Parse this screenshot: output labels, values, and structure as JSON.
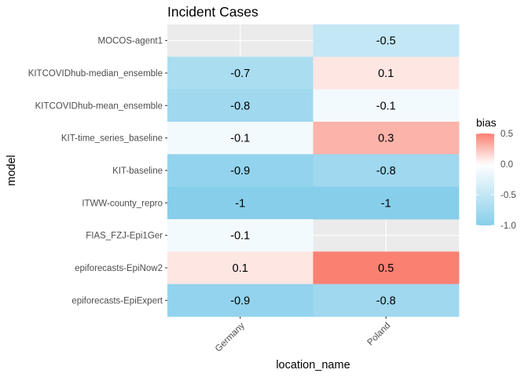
{
  "chart_data": {
    "type": "heatmap",
    "title": "Incident Cases",
    "xlabel": "location_name",
    "ylabel": "model",
    "x_categories": [
      "Germany",
      "Poland"
    ],
    "y_categories": [
      "MOCOS-agent1",
      "KITCOVIDhub-median_ensemble",
      "KITCOVIDhub-mean_ensemble",
      "KIT-time_series_baseline",
      "KIT-baseline",
      "ITWW-county_repro",
      "FIAS_FZJ-Epi1Ger",
      "epiforecasts-EpiNow2",
      "epiforecasts-EpiExpert"
    ],
    "values": [
      [
        null,
        -0.5
      ],
      [
        -0.7,
        0.1
      ],
      [
        -0.8,
        -0.1
      ],
      [
        -0.1,
        0.3
      ],
      [
        -0.9,
        -0.8
      ],
      [
        -1,
        -1
      ],
      [
        -0.1,
        null
      ],
      [
        0.1,
        0.5
      ],
      [
        -0.9,
        -0.8
      ]
    ],
    "labels": [
      [
        null,
        "-0.5"
      ],
      [
        "-0.7",
        "0.1"
      ],
      [
        "-0.8",
        "-0.1"
      ],
      [
        "-0.1",
        "0.3"
      ],
      [
        "-0.9",
        "-0.8"
      ],
      [
        "-1",
        "-1"
      ],
      [
        "-0.1",
        null
      ],
      [
        "0.1",
        "0.5"
      ],
      [
        "-0.9",
        "-0.8"
      ]
    ],
    "legend": {
      "title": "bias",
      "position": "right",
      "range": [
        -1,
        0.5
      ],
      "ticks": [
        0.5,
        0.0,
        -0.5,
        -1.0
      ],
      "tick_labels": [
        "0.5",
        "0.0",
        "-0.5",
        "-1.0"
      ]
    },
    "colors": {
      "low": "#87ceeb",
      "mid": "#ffffff",
      "high": "#fa8072",
      "missing": "#ebebeb",
      "grid": "#ffffff"
    },
    "grid": true
  }
}
